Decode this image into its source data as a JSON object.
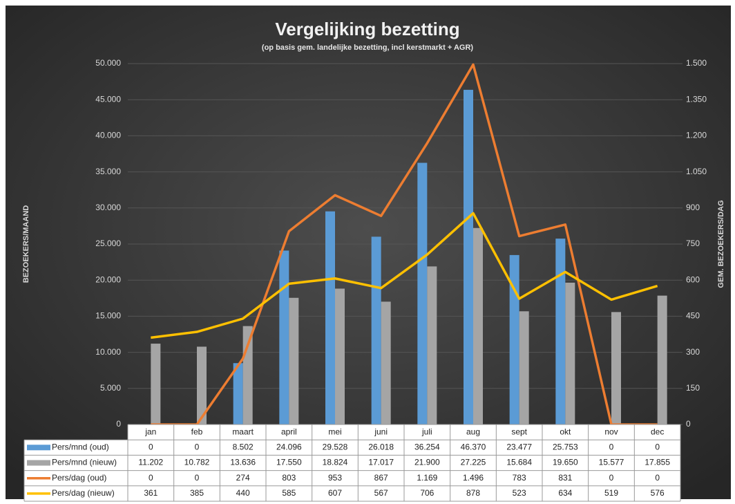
{
  "chart_data": {
    "type": "bar",
    "title": "Vergelijking bezetting",
    "subtitle": "(op basis gem. landelijke bezetting, incl kerstmarkt + AGR)",
    "y_label": "BEZOEKERS/MAAND",
    "y2_label": "GEM. BEZOEKERS/DAG",
    "categories": [
      "jan",
      "feb",
      "maart",
      "april",
      "mei",
      "juni",
      "juli",
      "aug",
      "sept",
      "okt",
      "nov",
      "dec"
    ],
    "ylim": [
      0,
      50000
    ],
    "yticks": [
      0,
      {
        "value": 5000,
        "label": "5.000"
      },
      {
        "value": 10000,
        "label": "10.000"
      },
      {
        "value": 15000,
        "label": "15.000"
      },
      {
        "value": 20000,
        "label": "20.000"
      },
      {
        "value": 25000,
        "label": "25.000"
      },
      {
        "value": 30000,
        "label": "30.000"
      },
      {
        "value": 35000,
        "label": "35.000"
      },
      {
        "value": 40000,
        "label": "40.000"
      },
      {
        "value": 45000,
        "label": "45.000"
      },
      {
        "value": 50000,
        "label": "50.000"
      }
    ],
    "y2lim": [
      0,
      1500
    ],
    "y2ticks": [
      0,
      150,
      300,
      450,
      600,
      750,
      900,
      {
        "value": 1050,
        "label": "1.050"
      },
      {
        "value": 1200,
        "label": "1.200"
      },
      {
        "value": 1350,
        "label": "1.350"
      },
      {
        "value": 1500,
        "label": "1.500"
      }
    ],
    "grid": true,
    "series": [
      {
        "name": "Pers/mnd (oud)",
        "type": "bar",
        "color": "#5b9bd5",
        "values": [
          0,
          0,
          8502,
          24096,
          29528,
          26018,
          36254,
          46370,
          23477,
          25753,
          0,
          0
        ],
        "value_labels": [
          "0",
          "0",
          "8.502",
          "24.096",
          "29.528",
          "26.018",
          "36.254",
          "46.370",
          "23.477",
          "25.753",
          "0",
          "0"
        ]
      },
      {
        "name": "Pers/mnd (nieuw)",
        "type": "bar",
        "color": "#a5a5a5",
        "values": [
          11202,
          10782,
          13636,
          17550,
          18824,
          17017,
          21900,
          27225,
          15684,
          19650,
          15577,
          17855
        ],
        "value_labels": [
          "11.202",
          "10.782",
          "13.636",
          "17.550",
          "18.824",
          "17.017",
          "21.900",
          "27.225",
          "15.684",
          "19.650",
          "15.577",
          "17.855"
        ]
      },
      {
        "name": "Pers/dag (oud)",
        "type": "line",
        "axis": "y2",
        "color": "#ed7d31",
        "values": [
          0,
          0,
          274,
          803,
          953,
          867,
          1169,
          1496,
          783,
          831,
          0,
          0
        ],
        "value_labels": [
          "0",
          "0",
          "274",
          "803",
          "953",
          "867",
          "1.169",
          "1.496",
          "783",
          "831",
          "0",
          "0"
        ]
      },
      {
        "name": "Pers/dag (nieuw)",
        "type": "line",
        "axis": "y2",
        "color": "#ffc000",
        "values": [
          361,
          385,
          440,
          585,
          607,
          567,
          706,
          878,
          523,
          634,
          519,
          576
        ],
        "value_labels": [
          "361",
          "385",
          "440",
          "585",
          "607",
          "567",
          "706",
          "878",
          "523",
          "634",
          "519",
          "576"
        ]
      }
    ]
  }
}
